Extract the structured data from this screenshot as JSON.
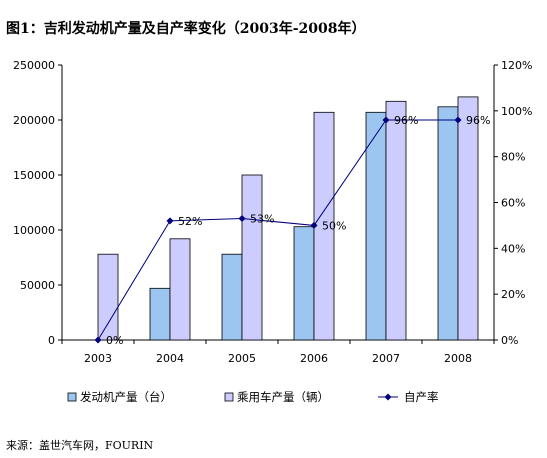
{
  "chart_data": {
    "type": "bar",
    "title": "图1：吉利发动机产量及自产率变化（2003年-2008年）",
    "categories": [
      "2003",
      "2004",
      "2005",
      "2006",
      "2007",
      "2008"
    ],
    "series": [
      {
        "name": "发动机产量（台）",
        "type": "bar",
        "axis": "left",
        "color": "#9cc6f0",
        "values": [
          0,
          47000,
          78000,
          103000,
          207000,
          212000
        ]
      },
      {
        "name": "乘用车产量（辆）",
        "type": "bar",
        "axis": "left",
        "color": "#ccccff",
        "values": [
          78000,
          92000,
          150000,
          207000,
          217000,
          221000
        ]
      },
      {
        "name": "自产率",
        "type": "line",
        "axis": "right",
        "color": "#000080",
        "values": [
          0,
          52,
          53,
          50,
          96,
          96
        ],
        "labels": [
          "0%",
          "52%",
          "53%",
          "50%",
          "96%",
          "96%"
        ]
      }
    ],
    "ylim_left": [
      0,
      250000
    ],
    "yticks_left": [
      "0",
      "50000",
      "100000",
      "150000",
      "200000",
      "250000"
    ],
    "ylim_right": [
      0,
      120
    ],
    "yticks_right": [
      "0%",
      "20%",
      "40%",
      "60%",
      "80%",
      "100%",
      "120%"
    ],
    "grid": false,
    "legend_position": "bottom"
  },
  "source": "来源：盖世汽车网，FOURIN"
}
